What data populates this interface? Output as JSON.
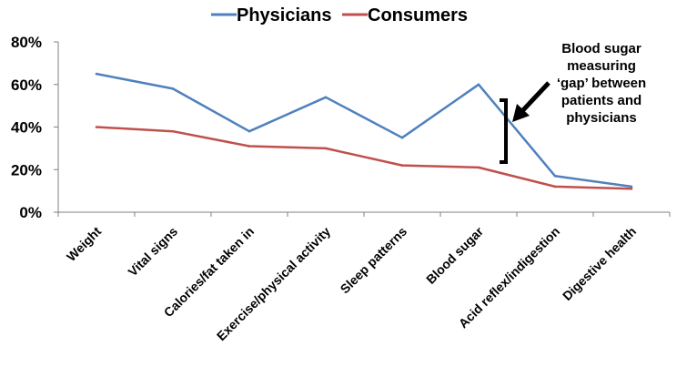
{
  "colors": {
    "physicians": "#4F81BD",
    "consumers": "#C0504D",
    "axis": "#808080"
  },
  "chart_data": {
    "type": "line",
    "title": "",
    "xlabel": "",
    "ylabel": "",
    "ylim": [
      0,
      80
    ],
    "y_ticks": [
      0,
      20,
      40,
      60,
      80
    ],
    "y_tick_labels": [
      "0%",
      "20%",
      "40%",
      "60%",
      "80%"
    ],
    "grid": false,
    "legend_position": "top-center",
    "categories": [
      "Weight",
      "Vital signs",
      "Calories/fat taken in",
      "Exercise/physical activity",
      "Sleep patterns",
      "Blood sugar",
      "Acid reflex/indigestion",
      "Digestive health"
    ],
    "series": [
      {
        "name": "Physicians",
        "color": "#4F81BD",
        "values": [
          65,
          58,
          38,
          54,
          35,
          60,
          17,
          12
        ]
      },
      {
        "name": "Consumers",
        "color": "#C0504D",
        "values": [
          40,
          38,
          31,
          30,
          22,
          21,
          12,
          11
        ]
      }
    ],
    "annotation": {
      "lines": [
        "Blood sugar",
        "measuring",
        "‘gap’ between",
        "patients and",
        "physicians"
      ]
    }
  }
}
